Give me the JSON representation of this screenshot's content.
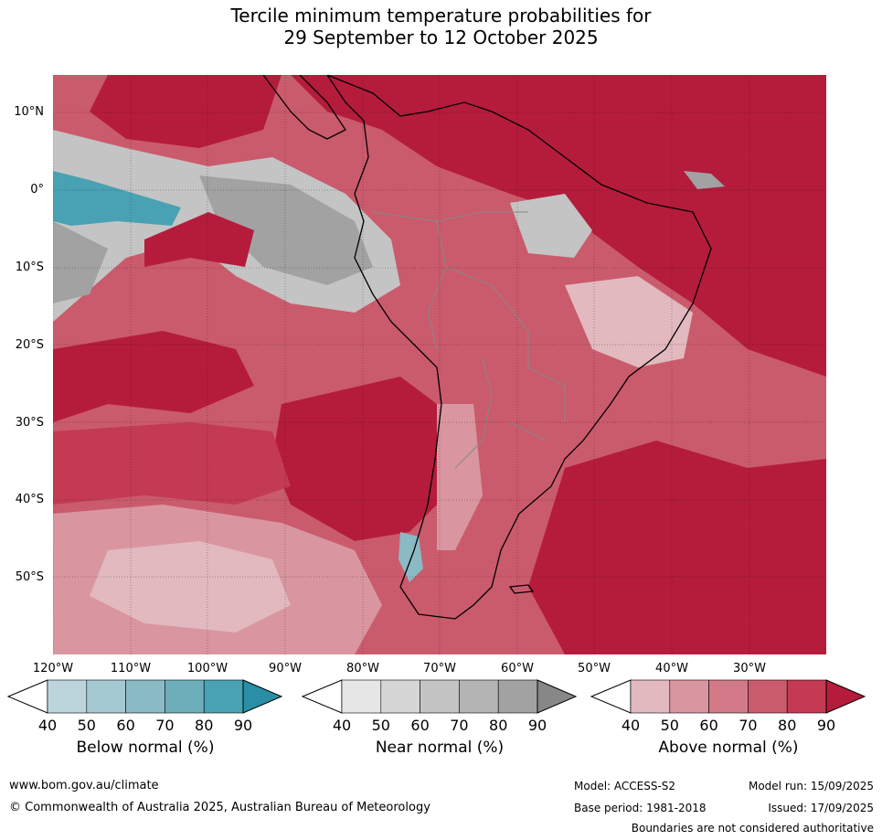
{
  "title": {
    "line1": "Tercile minimum temperature probabilities for",
    "line2": "29 September to 12 October 2025"
  },
  "map": {
    "lat_labels": [
      "10°N",
      "0°",
      "10°S",
      "20°S",
      "30°S",
      "40°S",
      "50°S"
    ],
    "lon_labels": [
      "120°W",
      "110°W",
      "100°W",
      "90°W",
      "80°W",
      "70°W",
      "60°W",
      "50°W",
      "40°W",
      "30°W"
    ],
    "colors": {
      "above_90": "#b51c3c",
      "above_80": "#c33a52",
      "above_70": "#ca5b6c",
      "above_60": "#d27a87",
      "above_50": "#d996a0",
      "above_40": "#e1b9be",
      "near_90": "#878787",
      "near_80": "#a2a2a2",
      "near_70": "#b4b4b4",
      "near_60": "#c4c4c4",
      "near_50": "#d6d6d6",
      "near_40": "#e6e6e6",
      "below_90": "#2a8fa6",
      "below_80": "#49a2b3",
      "below_60": "#8abac4",
      "below_40": "#bcd5dc",
      "land_outline": "#000000",
      "border": "#888888"
    }
  },
  "legends": [
    {
      "title": "Below normal (%)",
      "ticks": [
        "40",
        "50",
        "60",
        "70",
        "80",
        "90"
      ],
      "colors": [
        "#bcd5dc",
        "#a5c9d0",
        "#8abac4",
        "#6eaebb",
        "#49a2b3",
        "#2a8fa6"
      ]
    },
    {
      "title": "Near normal (%)",
      "ticks": [
        "40",
        "50",
        "60",
        "70",
        "80",
        "90"
      ],
      "colors": [
        "#e6e6e6",
        "#d6d6d6",
        "#c4c4c4",
        "#b4b4b4",
        "#a2a2a2",
        "#878787"
      ]
    },
    {
      "title": "Above normal (%)",
      "ticks": [
        "40",
        "50",
        "60",
        "70",
        "80",
        "90"
      ],
      "colors": [
        "#e1b9be",
        "#d996a0",
        "#d27a87",
        "#ca5b6c",
        "#c33a52",
        "#b51c3c"
      ]
    }
  ],
  "footer": {
    "website": "www.bom.gov.au/climate",
    "copyright": "© Commonwealth of Australia 2025, Australian Bureau of Meteorology",
    "model": "Model: ACCESS-S2",
    "base_period": "Base period: 1981-2018",
    "model_run": "Model run: 15/09/2025",
    "issued": "Issued: 17/09/2025",
    "disclaimer": "Boundaries are not considered authoritative"
  }
}
